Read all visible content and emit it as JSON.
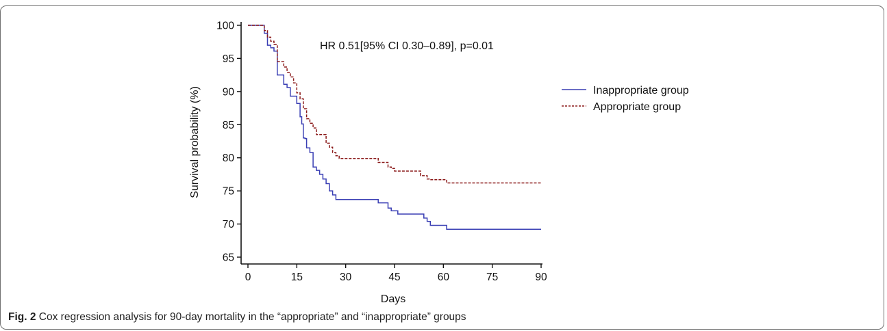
{
  "caption": {
    "label": "Fig. 2",
    "text": "Cox regression analysis for 90-day mortality in the “appropriate” and “inappropriate” groups"
  },
  "chart_data": {
    "type": "line",
    "subtype": "kaplan-meier step survival curve",
    "annotation": "HR 0.51[95% CI 0.30–0.89], p=0.01",
    "xlabel": "Days",
    "ylabel": "Survival probability (%)",
    "xlim": [
      0,
      90
    ],
    "ylim": [
      65,
      100
    ],
    "xticks": [
      0,
      15,
      30,
      45,
      60,
      75,
      90
    ],
    "yticks": [
      65,
      70,
      75,
      80,
      85,
      90,
      95,
      100
    ],
    "grid": false,
    "legend_position": "right",
    "series": [
      {
        "name": "Inappropriate group",
        "color": "#3a3fb4",
        "line_style": "solid",
        "x": [
          0,
          4,
          5,
          6,
          7,
          8,
          9,
          10,
          11,
          12,
          13,
          15,
          16,
          16.5,
          17,
          17.5,
          18,
          19,
          20,
          21,
          22,
          23,
          24,
          25,
          26,
          27,
          40,
          42,
          43,
          44,
          46,
          51,
          54,
          55,
          56,
          61,
          90
        ],
        "y": [
          100,
          100,
          98.8,
          97,
          96.6,
          96.1,
          92.5,
          92.5,
          91.1,
          90.6,
          89.3,
          88.2,
          86.2,
          85.1,
          83.0,
          82.9,
          81.5,
          80.8,
          78.6,
          78.1,
          77.5,
          76.8,
          76.1,
          75.0,
          74.4,
          73.7,
          73.2,
          73.2,
          72.4,
          72.0,
          71.5,
          71.5,
          70.9,
          70.4,
          69.8,
          69.2,
          69.2
        ]
      },
      {
        "name": "Appropriate group",
        "color": "#8b1a1a",
        "line_style": "dashed",
        "x": [
          0,
          4,
          5,
          6,
          7,
          8,
          9,
          11,
          12,
          13,
          14,
          15,
          16,
          17,
          18,
          19,
          20,
          21,
          22,
          24,
          25,
          26,
          27,
          28,
          40,
          43,
          44,
          45,
          51,
          53,
          55,
          56,
          61,
          90
        ],
        "y": [
          100,
          100,
          99.2,
          98.2,
          97.6,
          97.1,
          94.5,
          93.7,
          92.9,
          92.2,
          91.3,
          89.8,
          88.9,
          87.4,
          85.9,
          85.2,
          84.5,
          83.5,
          83.5,
          82.2,
          81.6,
          80.8,
          80.3,
          79.9,
          79.3,
          78.6,
          78.4,
          78.0,
          78.0,
          77.3,
          76.8,
          76.7,
          76.2,
          76.2
        ]
      }
    ]
  }
}
